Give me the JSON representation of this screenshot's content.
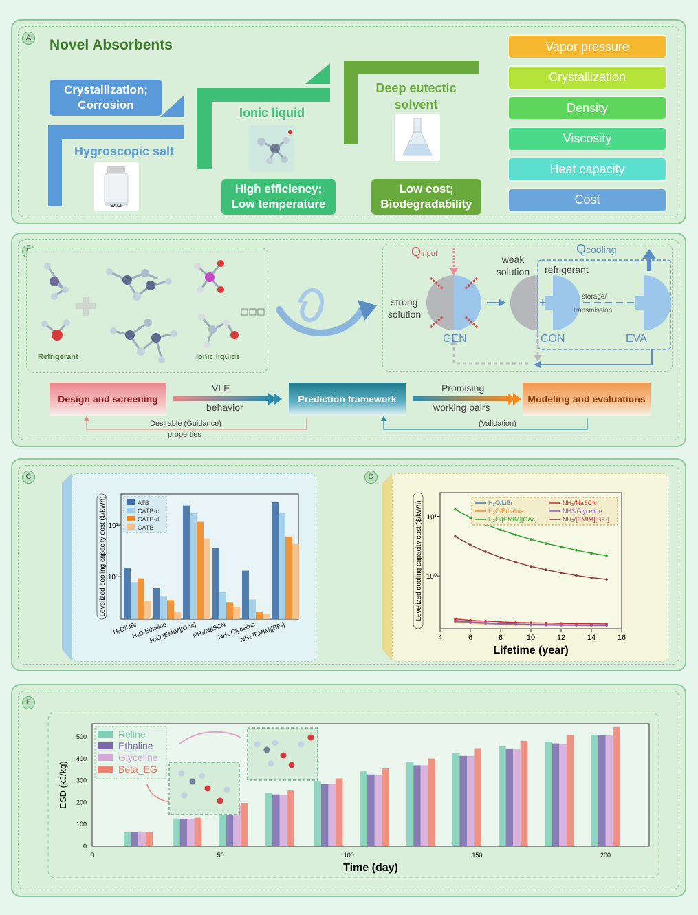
{
  "panelA": {
    "letter": "A",
    "title": "Novel Absorbents",
    "salt": {
      "name": "Hygroscopic salt",
      "issue": "Crystallization; Corrosion",
      "jar_label": "SALT"
    },
    "ionic": {
      "name": "Ionic liquid",
      "benefit": "High efficiency; Low temperature"
    },
    "des": {
      "name": "Deep eutectic solvent",
      "benefit": "Low cost; Biodegradability"
    },
    "properties": [
      {
        "label": "Vapor pressure",
        "color": "#f5b82e"
      },
      {
        "label": "Crystallization",
        "color": "#b5e33a"
      },
      {
        "label": "Density",
        "color": "#5dd45a"
      },
      {
        "label": "Viscosity",
        "color": "#4bd98a"
      },
      {
        "label": "Heat capacity",
        "color": "#5ddfcf"
      },
      {
        "label": "Cost",
        "color": "#6aa6dc"
      }
    ]
  },
  "panelB": {
    "letter": "B",
    "refrigerant_label": "Refrigerant",
    "ionic_label": "Ionic liquids",
    "q_input": "Q",
    "q_input_sub": "input",
    "q_cooling": "Q",
    "q_cooling_sub": "cooling",
    "weak_solution": "weak solution",
    "strong_solution": "strong solution",
    "refrigerant": "refrigerant",
    "storage": "storage/",
    "transmission": "transmission",
    "gen": "GEN",
    "con": "CON",
    "eva": "EVA",
    "flow": {
      "design": "Design and screening",
      "vle": "VLE",
      "behavior": "behavior",
      "prediction": "Prediction framework",
      "promising": "Promising",
      "working_pairs": "working pairs",
      "modeling": "Modeling and evaluations",
      "desirable": "Desirable  (Guidance)",
      "properties": "properties",
      "validation": "(Validation)"
    }
  },
  "panelC": {
    "letter": "C"
  },
  "panelD": {
    "letter": "D"
  },
  "panelE": {
    "letter": "E"
  },
  "chart_data": [
    {
      "type": "bar",
      "ylabel": "Levelized cooling capacity cost ($/kWh)",
      "yscale": "log",
      "yticks": [
        "10⁰",
        "10¹"
      ],
      "legend_position": "top-left",
      "categories": [
        "H₂O/LiBr",
        "H₂O/Ethaline",
        "H₂O/[EMIM][OAc]",
        "NH₃/NaSCN",
        "NH₃/Glyceline",
        "NH₃/[EMIM][BF₄]"
      ],
      "series": [
        {
          "name": "ATB",
          "color": "#3f6fa6",
          "values": [
            1.5,
            0.6,
            24,
            3.6,
            1.3,
            28
          ]
        },
        {
          "name": "CATB-c",
          "color": "#9fcdea",
          "values": [
            0.78,
            0.41,
            17,
            0.5,
            0.36,
            17
          ]
        },
        {
          "name": "CATB-d",
          "color": "#f08a24",
          "values": [
            0.93,
            0.35,
            11.5,
            0.32,
            0.21,
            6
          ]
        },
        {
          "name": "CATB",
          "color": "#f9bf85",
          "values": [
            0.34,
            0.21,
            5.5,
            0.26,
            0.19,
            4.3
          ]
        }
      ]
    },
    {
      "type": "line",
      "xlabel": "Lifetime (year)",
      "ylabel": "Levelized cooling capacity cost ($/kWh)",
      "yscale": "log",
      "yticks": [
        "10⁰",
        "10¹"
      ],
      "xlim": [
        4,
        16
      ],
      "xticks": [
        4,
        6,
        8,
        10,
        12,
        14,
        16
      ],
      "legend_position": "top",
      "x": [
        5,
        6,
        7,
        8,
        9,
        10,
        11,
        12,
        13,
        14,
        15
      ],
      "series": [
        {
          "name": "H₂O/LiBr",
          "color": "#3a7bbd",
          "values": [
            0.18,
            0.17,
            0.165,
            0.16,
            0.157,
            0.155,
            0.153,
            0.152,
            0.151,
            0.15,
            0.15
          ]
        },
        {
          "name": "NH₃/NaSCN",
          "color": "#d62728",
          "values": [
            0.19,
            0.18,
            0.175,
            0.17,
            0.166,
            0.164,
            0.162,
            0.16,
            0.159,
            0.158,
            0.157
          ]
        },
        {
          "name": "H₂O/Ethaline",
          "color": "#f08a24",
          "values": [
            0.17,
            0.163,
            0.158,
            0.155,
            0.152,
            0.15,
            0.149,
            0.148,
            0.147,
            0.146,
            0.146
          ]
        },
        {
          "name": "NH3/Glyceline",
          "color": "#8e5fc2",
          "values": [
            0.175,
            0.168,
            0.162,
            0.158,
            0.155,
            0.153,
            0.151,
            0.15,
            0.149,
            0.148,
            0.148
          ]
        },
        {
          "name": "H₂O/[EMIM][OAc]",
          "color": "#2ca02c",
          "values": [
            13,
            9.5,
            7.3,
            5.9,
            4.9,
            4.1,
            3.5,
            3.1,
            2.7,
            2.4,
            2.2
          ]
        },
        {
          "name": "NH₃/[EMIM][BF₄]",
          "color": "#8c3c3c",
          "values": [
            4.6,
            3.3,
            2.55,
            2.05,
            1.7,
            1.45,
            1.27,
            1.13,
            1.02,
            0.94,
            0.88
          ]
        }
      ]
    },
    {
      "type": "bar",
      "xlabel": "Time (day)",
      "ylabel": "ESD (kJ/kg)",
      "ylim": [
        0,
        560
      ],
      "yticks": [
        0,
        100,
        200,
        300,
        400,
        500
      ],
      "xlim": [
        0,
        217
      ],
      "xticks": [
        0,
        50,
        100,
        150,
        200
      ],
      "legend_position": "top-left",
      "x": [
        18,
        37,
        55,
        73,
        92,
        110,
        128,
        146,
        164,
        182,
        200
      ],
      "series": [
        {
          "name": "Reline",
          "color": "#7fcfb6",
          "values": [
            63,
            127,
            190,
            245,
            298,
            342,
            385,
            425,
            457,
            478,
            510
          ]
        },
        {
          "name": "Ethaline",
          "color": "#7a68ab",
          "values": [
            63,
            126,
            187,
            237,
            285,
            328,
            370,
            413,
            447,
            470,
            508
          ]
        },
        {
          "name": "Glyceline",
          "color": "#d5a7da",
          "values": [
            62,
            125,
            183,
            235,
            285,
            325,
            370,
            413,
            443,
            466,
            506
          ]
        },
        {
          "name": "Beta_EG",
          "color": "#f08070",
          "values": [
            64,
            130,
            198,
            254,
            310,
            356,
            401,
            448,
            482,
            508,
            545
          ]
        }
      ]
    }
  ]
}
